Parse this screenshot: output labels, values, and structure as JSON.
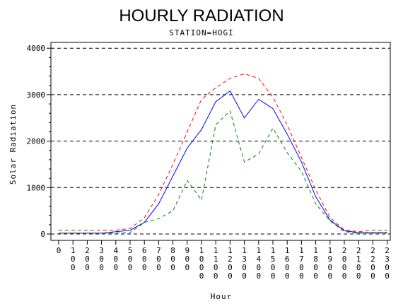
{
  "chart_data": {
    "type": "line",
    "title": "HOURLY RADIATION",
    "subtitle": "STATION=HOGI",
    "xlabel": "Hour",
    "ylabel": "Solar Radiation",
    "x": [
      "0",
      "100",
      "200",
      "300",
      "400",
      "500",
      "600",
      "700",
      "800",
      "900",
      "1000",
      "1100",
      "1200",
      "1300",
      "1400",
      "1500",
      "1600",
      "1700",
      "1800",
      "1900",
      "2000",
      "2100",
      "2200",
      "2300"
    ],
    "yticks": [
      "0",
      "1000",
      "2000",
      "3000",
      "4000"
    ],
    "ylim": [
      0,
      4000
    ],
    "grid": "horizontal dashed",
    "series": [
      {
        "color": "#0000ff",
        "dash": "solid",
        "values": [
          20,
          20,
          20,
          20,
          50,
          80,
          250,
          650,
          1250,
          1850,
          2250,
          2850,
          3080,
          2500,
          2900,
          2700,
          2150,
          1550,
          800,
          300,
          70,
          30,
          30,
          30
        ]
      },
      {
        "color": "#ff0000",
        "dash": "dashed",
        "values": [
          80,
          80,
          80,
          80,
          80,
          120,
          350,
          850,
          1500,
          2200,
          2900,
          3150,
          3350,
          3450,
          3350,
          2950,
          2350,
          1650,
          950,
          350,
          90,
          50,
          80,
          80
        ]
      },
      {
        "color": "#008000",
        "dash": "dashed",
        "values": [
          20,
          20,
          20,
          20,
          20,
          30,
          250,
          330,
          500,
          1150,
          730,
          2350,
          2650,
          1550,
          1720,
          2280,
          1750,
          1350,
          650,
          280,
          50,
          20,
          20,
          20
        ]
      }
    ]
  }
}
